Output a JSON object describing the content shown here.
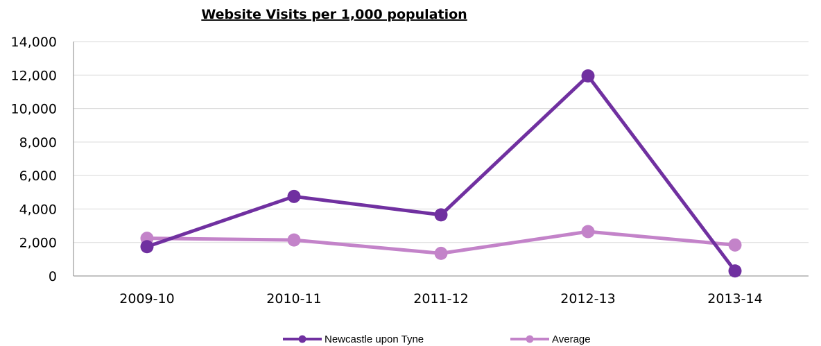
{
  "chart_data": {
    "type": "line",
    "title": "Website Visits per 1,000 population",
    "categories": [
      "2009-10",
      "2010-11",
      "2011-12",
      "2012-13",
      "2013-14"
    ],
    "series": [
      {
        "name": "Newcastle upon Tyne",
        "color": "#7030A0",
        "values": [
          1750,
          4750,
          3650,
          11950,
          300
        ]
      },
      {
        "name": "Average",
        "color": "#C383C9",
        "values": [
          2250,
          2150,
          1350,
          2650,
          1850
        ]
      }
    ],
    "ylim": [
      0,
      14000
    ],
    "yticks": [
      "0",
      "2,000",
      "4,000",
      "6,000",
      "8,000",
      "10,000",
      "12,000",
      "14,000"
    ],
    "grid": true,
    "legend": "bottom"
  }
}
